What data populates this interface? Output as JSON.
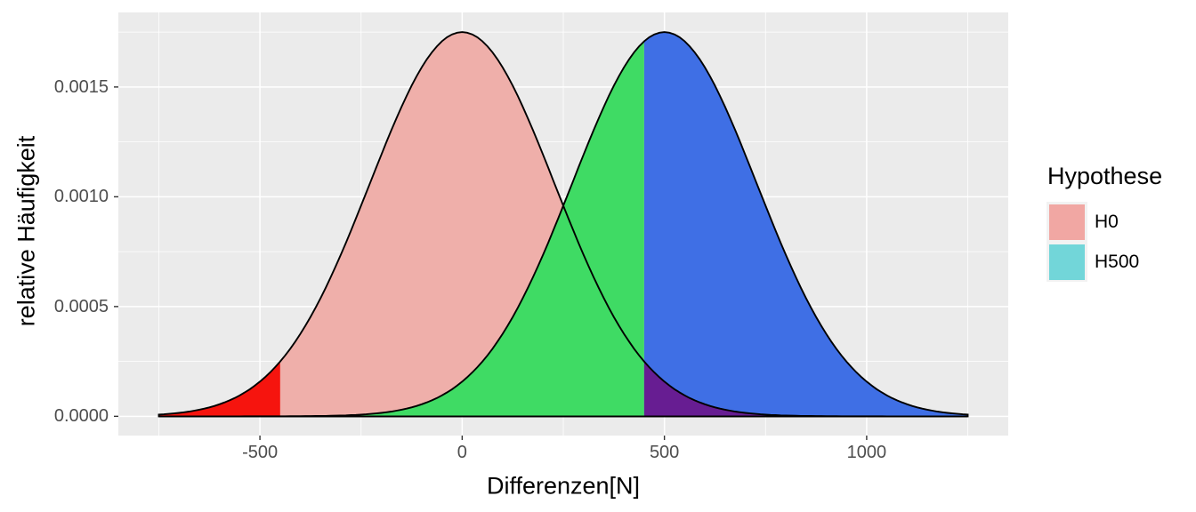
{
  "figure": {
    "background": "#FFFFFF",
    "panel_bg": "#EBEBEB",
    "grid_major_color": "#FFFFFF",
    "grid_minor_color": "#FFFFFF",
    "tick_mark_color": "#333333",
    "tick_label_color": "#4D4D4D"
  },
  "chart_data": {
    "type": "area",
    "title": "",
    "xlabel": "Differenzen[N]",
    "ylabel": "relative Häufigkeit",
    "x_domain": [
      -850,
      1350
    ],
    "y_domain": [
      -8.76e-05,
      0.0018396
    ],
    "x_ticks": [
      {
        "value": -500,
        "label": "-500"
      },
      {
        "value": 0,
        "label": "0"
      },
      {
        "value": 500,
        "label": "500"
      },
      {
        "value": 1000,
        "label": "1000"
      }
    ],
    "y_ticks": [
      {
        "value": 0.0,
        "label": "0.0000"
      },
      {
        "value": 0.0005,
        "label": "0.0005"
      },
      {
        "value": 0.001,
        "label": "0.0010"
      },
      {
        "value": 0.0015,
        "label": "0.0015"
      }
    ],
    "x_minor": [
      -750,
      -250,
      250,
      750,
      1250
    ],
    "y_minor": [
      0.00025,
      0.00075,
      0.00125,
      0.00175
    ],
    "grid": "on",
    "curves": [
      {
        "id": "H0",
        "mean": 0,
        "sd": 228,
        "peak_density": 0.00175,
        "range": [
          -750,
          1250
        ],
        "outline": "#000000"
      },
      {
        "id": "H500",
        "mean": 500,
        "sd": 228,
        "peak_density": 0.00175,
        "range": [
          -750,
          1250
        ],
        "outline": "#000000"
      }
    ],
    "critical_values": [
      -450,
      450
    ],
    "regions": [
      {
        "id": "h0-distribution",
        "curve": "H0",
        "from": -750,
        "to": 1250,
        "fill": "#EFAFAA"
      },
      {
        "id": "beta-region",
        "curve": "H500",
        "from": -750,
        "to": 450,
        "fill": "#3FDB64"
      },
      {
        "id": "alpha-left-region",
        "curve": "H0",
        "from": -750,
        "to": -450,
        "fill": "#F6140E"
      },
      {
        "id": "power-region",
        "curve": "H500",
        "from": 450,
        "to": 1250,
        "fill": "#3F6FE5"
      },
      {
        "id": "alpha-right-region",
        "curve": "H0",
        "from": 450,
        "to": 1250,
        "fill": "#671D92"
      }
    ],
    "legend": {
      "position": "right",
      "title": "Hypothese",
      "key_bg": "#F2F2F2",
      "entries": [
        {
          "label": "H0",
          "color": "#F1A7A3"
        },
        {
          "label": "H500",
          "color": "#72D6D9"
        }
      ]
    }
  }
}
